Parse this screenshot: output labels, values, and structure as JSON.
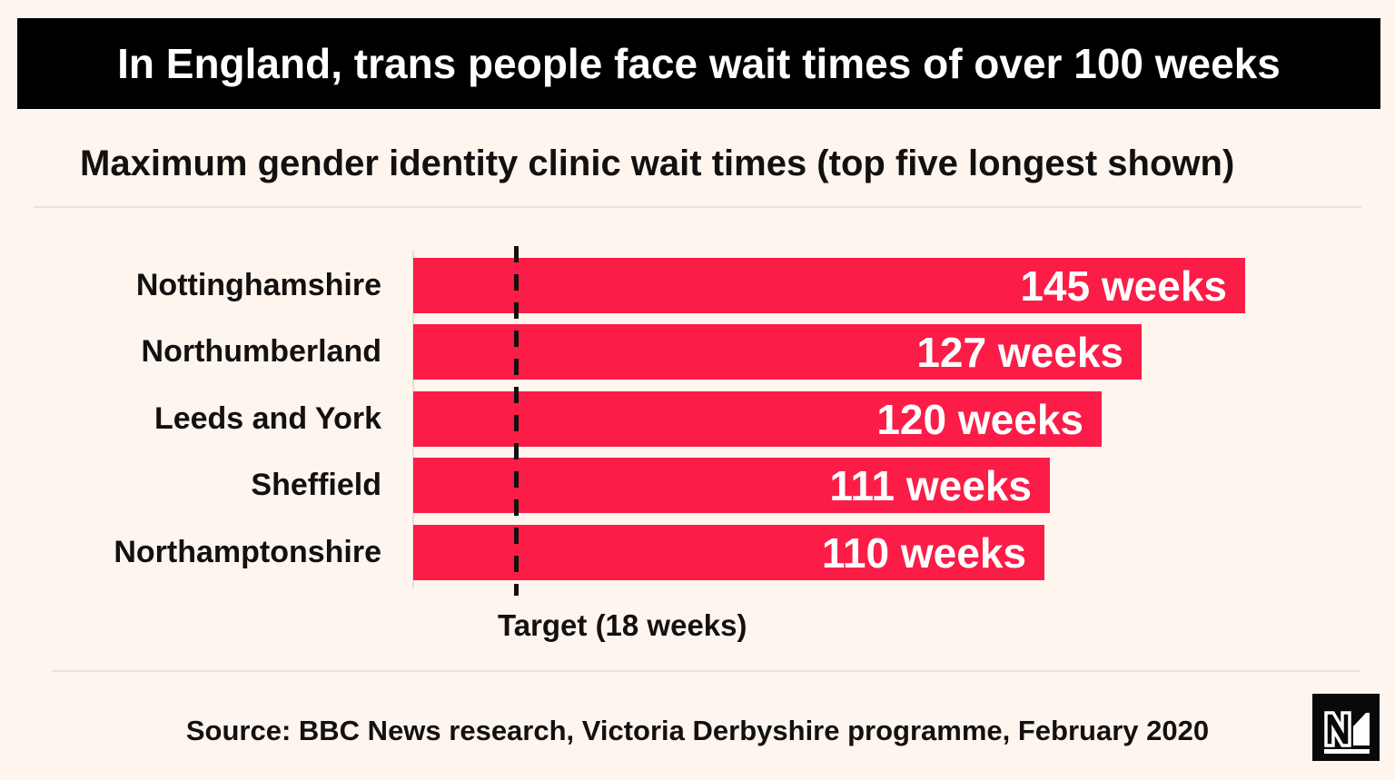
{
  "page": {
    "background": "#fdf5ee",
    "text_color": "#131010"
  },
  "header": {
    "title": "In England, trans people face wait times of over 100 weeks",
    "background": "#000000",
    "text_color": "#ffffff"
  },
  "subtitle": "Maximum gender identity clinic wait times (top five longest shown)",
  "chart_data": {
    "type": "bar",
    "orientation": "horizontal",
    "title": "Maximum gender identity clinic wait times (top five longest shown)",
    "categories": [
      "Nottinghamshire",
      "Northumberland",
      "Leeds and York",
      "Sheffield",
      "Northamptonshire"
    ],
    "values": [
      145,
      127,
      120,
      111,
      110
    ],
    "value_labels": [
      "145 weeks",
      "127 weeks",
      "120 weeks",
      "111 weeks",
      "110 weeks"
    ],
    "unit": "weeks",
    "xlim": [
      0,
      168
    ],
    "grid": false,
    "legend": false,
    "bar_color": "#fb1d47",
    "value_label_color": "#ffffff",
    "target": {
      "value": 18,
      "label": "Target (18 weeks)",
      "line_style": "dashed",
      "line_color": "#131010"
    }
  },
  "footer": {
    "source": "Source: BBC News research, Victoria Derbyshire programme, February 2020",
    "logo": "novara-media-logo"
  }
}
